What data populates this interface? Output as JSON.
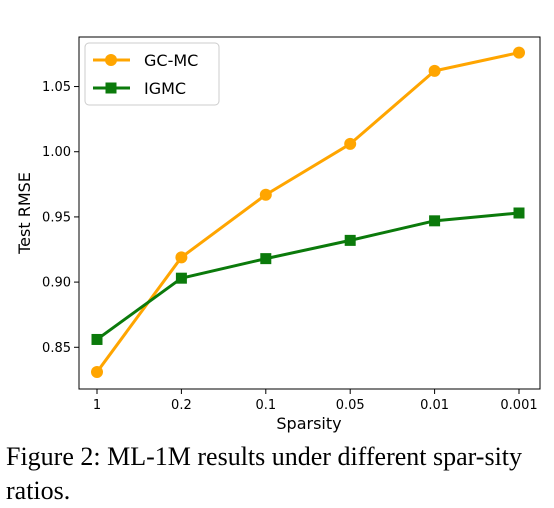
{
  "chart_data": {
    "type": "line",
    "categories": [
      "1",
      "0.2",
      "0.1",
      "0.05",
      "0.01",
      "0.001"
    ],
    "series": [
      {
        "name": "GC-MC",
        "color": "#FFA500",
        "marker": "circle",
        "values": [
          0.831,
          0.919,
          0.967,
          1.006,
          1.062,
          1.076
        ]
      },
      {
        "name": "IGMC",
        "color": "#0B7A0B",
        "marker": "square",
        "values": [
          0.856,
          0.903,
          0.918,
          0.932,
          0.947,
          0.953
        ]
      }
    ],
    "title": "",
    "xlabel": "Sparsity",
    "ylabel": "Test RMSE",
    "ylim": [
      0.818,
      1.088
    ],
    "yticks": [
      "0.85",
      "0.90",
      "0.95",
      "1.00",
      "1.05"
    ],
    "ytick_values": [
      0.85,
      0.9,
      0.95,
      1.0,
      1.05
    ],
    "grid": false,
    "legend_position": "top-left"
  },
  "caption": "Figure 2: ML-1M results under different spar-sity ratios."
}
